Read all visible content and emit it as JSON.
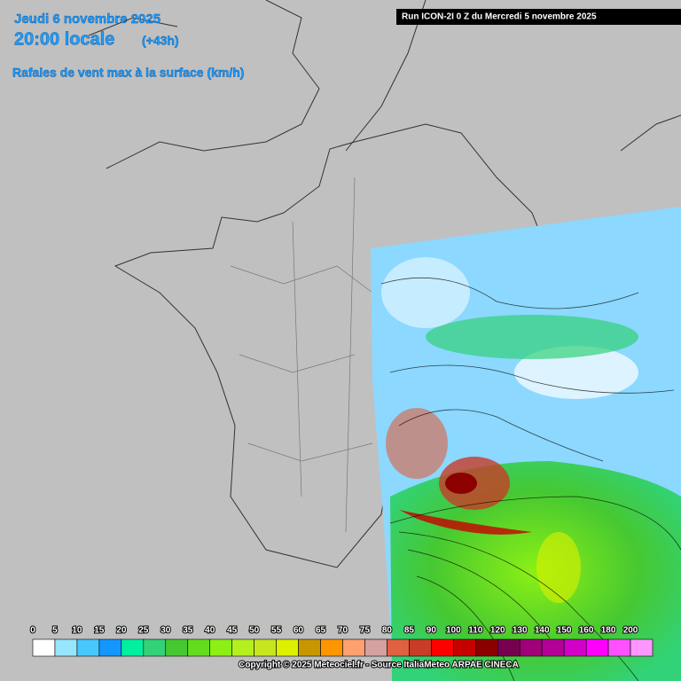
{
  "header": {
    "date": "Jeudi 6 novembre 2025",
    "time": "20:00 locale",
    "lead": "(+43h)",
    "parameter": "Rafales de vent max à la surface (km/h)"
  },
  "run_label": "Run ICON-2I 0 Z du Mercredi 5 novembre 2025",
  "legend": {
    "labels": [
      "0",
      "5",
      "10",
      "15",
      "20",
      "25",
      "30",
      "35",
      "40",
      "45",
      "50",
      "55",
      "60",
      "65",
      "70",
      "75",
      "80",
      "85",
      "90",
      "100",
      "110",
      "120",
      "130",
      "140",
      "150",
      "160",
      "180",
      "200"
    ],
    "colors": [
      "#ffffff",
      "#96e6ff",
      "#46c8ff",
      "#1496ff",
      "#00f0a0",
      "#32d278",
      "#46c832",
      "#64dc1e",
      "#8cf014",
      "#b4f01e",
      "#c8e61e",
      "#dcf000",
      "#c89600",
      "#ff9600",
      "#ffa070",
      "#d4a0a0",
      "#e06040",
      "#c83c28",
      "#ff0000",
      "#c80000",
      "#8c0000",
      "#780050",
      "#a00078",
      "#b40096",
      "#d200c8",
      "#ff00ff",
      "#ff50ff",
      "#ff96ff"
    ]
  },
  "copyright": "Copyright © 2025 Meteociel.fr - Source ItaliaMeteo ARPAE CINECA"
}
